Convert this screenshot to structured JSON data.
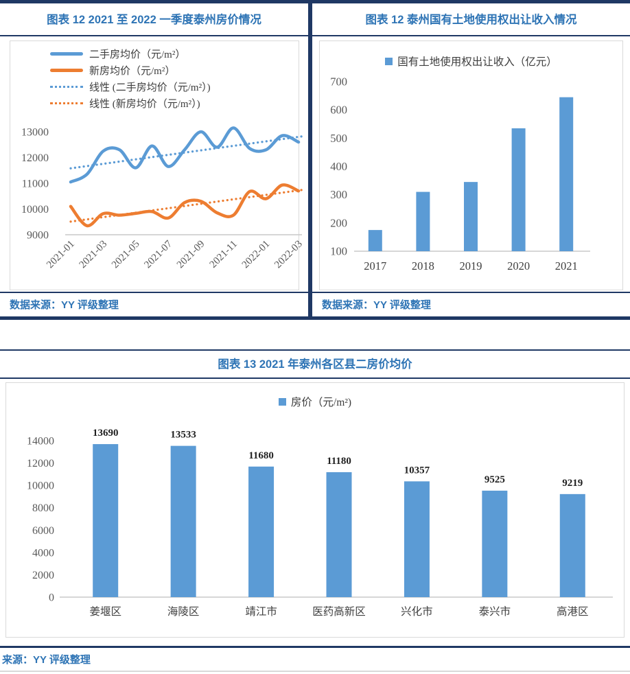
{
  "colors": {
    "navy": "#1F3864",
    "title_blue": "#2E74B5",
    "bar_blue": "#5B9BD5",
    "orange": "#ED7D31",
    "tick_gray": "#595959",
    "box_border": "#D9D9D9"
  },
  "chart_data": [
    {
      "id": "taizhou-house-price-line",
      "type": "line",
      "title": "图表 12 2021 至 2022 一季度泰州房价情况",
      "source": "数据来源：YY 评级整理",
      "x": [
        "2021-01",
        "2021-02",
        "2021-03",
        "2021-04",
        "2021-05",
        "2021-06",
        "2021-07",
        "2021-08",
        "2021-09",
        "2021-10",
        "2021-11",
        "2021-12",
        "2022-01",
        "2022-02",
        "2022-03"
      ],
      "x_tick_labels": [
        "2021-01",
        "2021-03",
        "2021-05",
        "2021-07",
        "2021-09",
        "2021-11",
        "2022-01",
        "2022-03"
      ],
      "ylim": [
        9000,
        13000
      ],
      "yticks": [
        9000,
        10000,
        11000,
        12000,
        13000
      ],
      "grid": false,
      "legend_position": "top-left",
      "series": [
        {
          "name": "二手房均价（元/m²）",
          "style": "solid",
          "color": "#5B9BD5",
          "values": [
            11050,
            11350,
            12250,
            12300,
            11600,
            12450,
            11650,
            12300,
            13000,
            12400,
            13150,
            12350,
            12300,
            12850,
            12600
          ]
        },
        {
          "name": "新房均价（元/m²）",
          "style": "solid",
          "color": "#ED7D31",
          "values": [
            10100,
            9350,
            9820,
            9760,
            9830,
            9900,
            9650,
            10250,
            10300,
            9850,
            9760,
            10680,
            10400,
            10930,
            10700
          ]
        },
        {
          "name": "线性 (二手房均价（元/m²）)",
          "style": "dotted",
          "color": "#5B9BD5",
          "trend": [
            11580,
            12820
          ]
        },
        {
          "name": "线性 (新房均价（元/m²）)",
          "style": "dotted",
          "color": "#ED7D31",
          "trend": [
            9510,
            10740
          ]
        }
      ]
    },
    {
      "id": "land-transfer-income-bar",
      "type": "bar",
      "title": "图表 12  泰州国有土地使用权出让收入情况",
      "source": "数据来源：YY 评级整理",
      "legend": "国有土地使用权出让收入（亿元）",
      "categories": [
        "2017",
        "2018",
        "2019",
        "2020",
        "2021"
      ],
      "values": [
        175,
        310,
        345,
        535,
        645
      ],
      "ylim": [
        100,
        700
      ],
      "yticks": [
        100,
        200,
        300,
        400,
        500,
        600,
        700
      ],
      "grid": false,
      "data_labels": false,
      "color": "#5B9BD5"
    },
    {
      "id": "district-house-price-bar",
      "type": "bar",
      "title": "图表 13 2021 年泰州各区县二房价均价",
      "source": "来源：YY 评级整理",
      "legend": "房价（元/m²)",
      "categories": [
        "姜堰区",
        "海陵区",
        "靖江市",
        "医药高新区",
        "兴化市",
        "泰兴市",
        "高港区"
      ],
      "values": [
        13690,
        13533,
        11680,
        11180,
        10357,
        9525,
        9219
      ],
      "ylim": [
        0,
        14000
      ],
      "yticks": [
        0,
        2000,
        4000,
        6000,
        8000,
        10000,
        12000,
        14000
      ],
      "grid": false,
      "data_labels": true,
      "color": "#5B9BD5"
    }
  ]
}
